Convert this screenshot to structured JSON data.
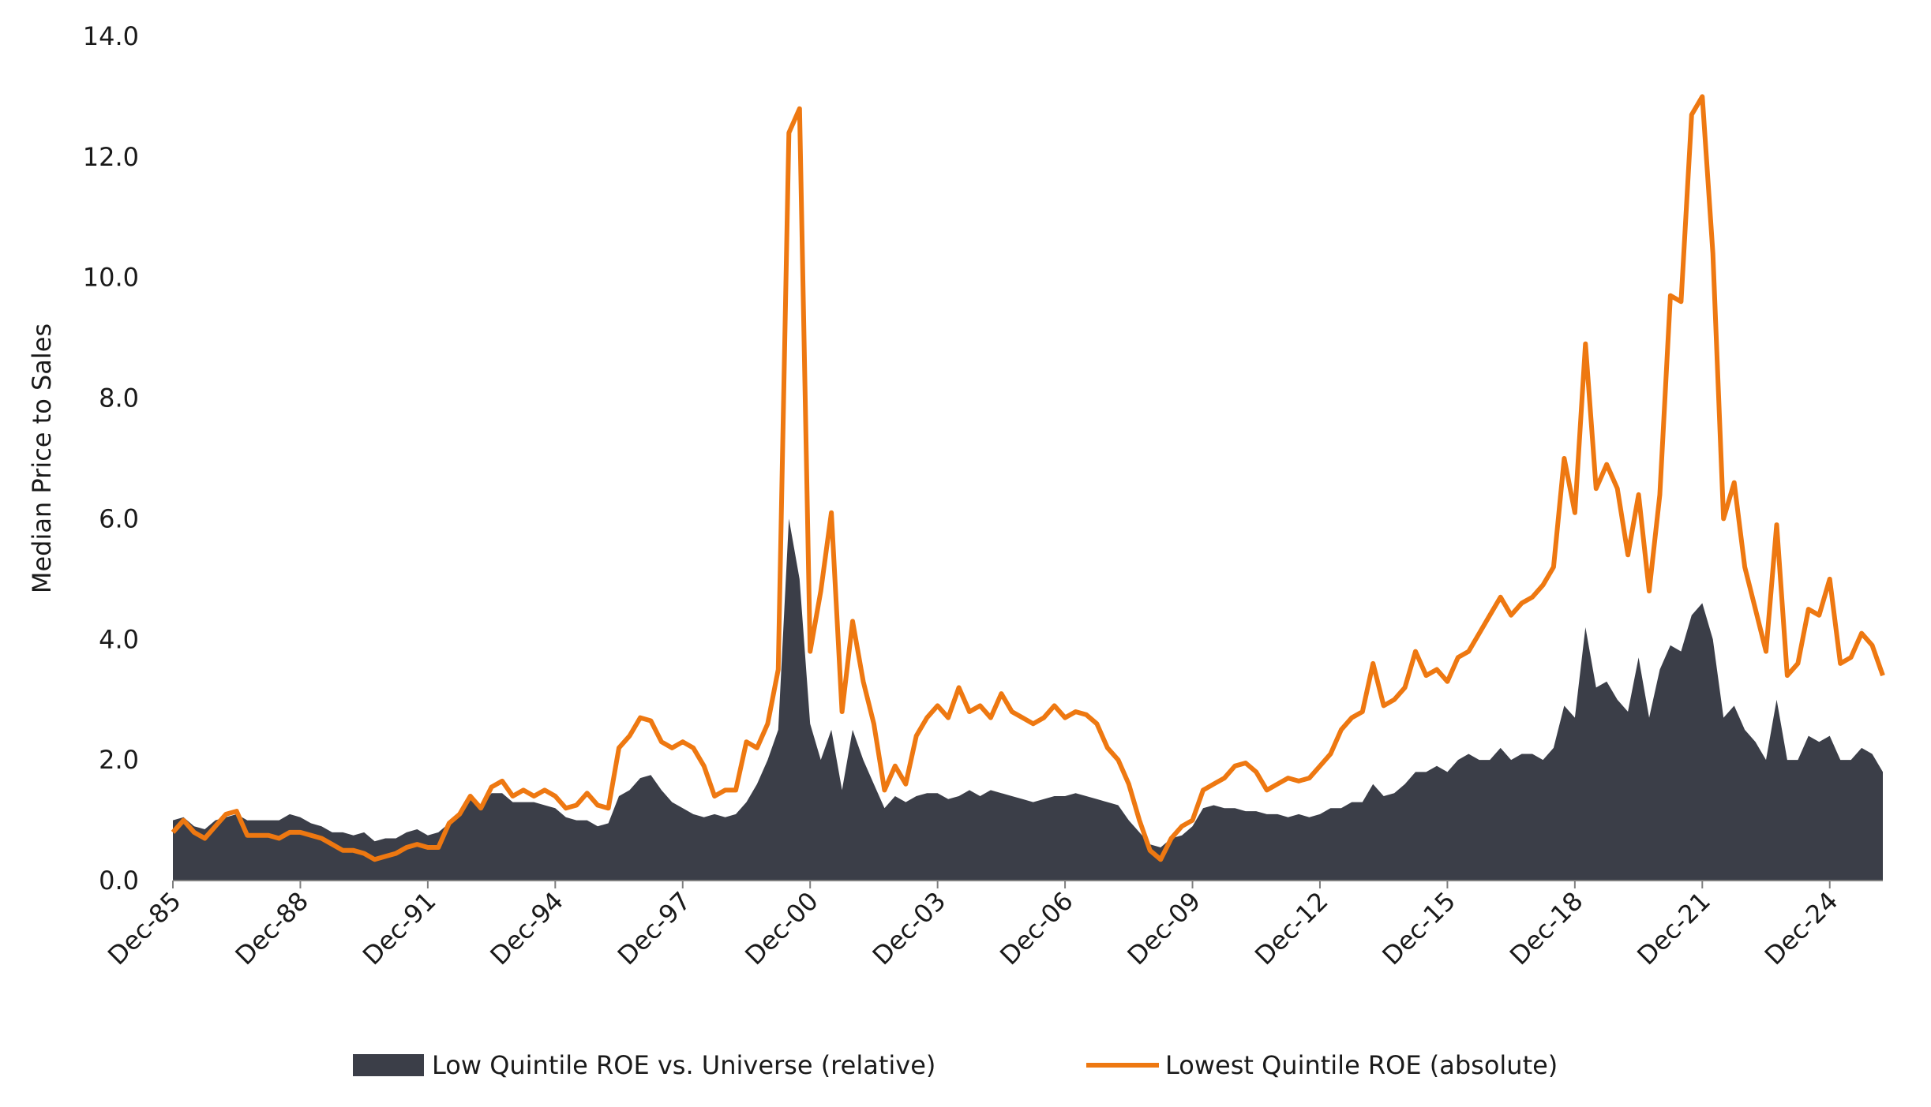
{
  "chart_data": {
    "type": "line",
    "ylabel": "Median Price to Sales",
    "xlim": [
      1985.92,
      2026.17
    ],
    "ylim": [
      0,
      14
    ],
    "yticks": [
      {
        "value": 0,
        "label": "0.0"
      },
      {
        "value": 2,
        "label": "2.0"
      },
      {
        "value": 4,
        "label": "4.0"
      },
      {
        "value": 6,
        "label": "6.0"
      },
      {
        "value": 8,
        "label": "8.0"
      },
      {
        "value": 10,
        "label": "10.0"
      },
      {
        "value": 12,
        "label": "12.0"
      },
      {
        "value": 14,
        "label": "14.0"
      }
    ],
    "xticks": [
      {
        "value": 1985.92,
        "label": "Dec-85"
      },
      {
        "value": 1988.92,
        "label": "Dec-88"
      },
      {
        "value": 1991.92,
        "label": "Dec-91"
      },
      {
        "value": 1994.92,
        "label": "Dec-94"
      },
      {
        "value": 1997.92,
        "label": "Dec-97"
      },
      {
        "value": 2000.92,
        "label": "Dec-00"
      },
      {
        "value": 2003.92,
        "label": "Dec-03"
      },
      {
        "value": 2006.92,
        "label": "Dec-06"
      },
      {
        "value": 2009.92,
        "label": "Dec-09"
      },
      {
        "value": 2012.92,
        "label": "Dec-12"
      },
      {
        "value": 2015.92,
        "label": "Dec-15"
      },
      {
        "value": 2018.92,
        "label": "Dec-18"
      },
      {
        "value": 2021.92,
        "label": "Dec-21"
      },
      {
        "value": 2024.92,
        "label": "Dec-24"
      }
    ],
    "grid": false,
    "legend": "bottom",
    "x": [
      1985.92,
      1986.17,
      1986.42,
      1986.67,
      1986.92,
      1987.17,
      1987.42,
      1987.67,
      1987.92,
      1988.17,
      1988.42,
      1988.67,
      1988.92,
      1989.17,
      1989.42,
      1989.67,
      1989.92,
      1990.17,
      1990.42,
      1990.67,
      1990.92,
      1991.17,
      1991.42,
      1991.67,
      1991.92,
      1992.17,
      1992.42,
      1992.67,
      1992.92,
      1993.17,
      1993.42,
      1993.67,
      1993.92,
      1994.17,
      1994.42,
      1994.67,
      1994.92,
      1995.17,
      1995.42,
      1995.67,
      1995.92,
      1996.17,
      1996.42,
      1996.67,
      1996.92,
      1997.17,
      1997.42,
      1997.67,
      1997.92,
      1998.17,
      1998.42,
      1998.67,
      1998.92,
      1999.17,
      1999.42,
      1999.67,
      1999.92,
      2000.17,
      2000.42,
      2000.67,
      2000.92,
      2001.17,
      2001.42,
      2001.67,
      2001.92,
      2002.17,
      2002.42,
      2002.67,
      2002.92,
      2003.17,
      2003.42,
      2003.67,
      2003.92,
      2004.17,
      2004.42,
      2004.67,
      2004.92,
      2005.17,
      2005.42,
      2005.67,
      2005.92,
      2006.17,
      2006.42,
      2006.67,
      2006.92,
      2007.17,
      2007.42,
      2007.67,
      2007.92,
      2008.17,
      2008.42,
      2008.67,
      2008.92,
      2009.17,
      2009.42,
      2009.67,
      2009.92,
      2010.17,
      2010.42,
      2010.67,
      2010.92,
      2011.17,
      2011.42,
      2011.67,
      2011.92,
      2012.17,
      2012.42,
      2012.67,
      2012.92,
      2013.17,
      2013.42,
      2013.67,
      2013.92,
      2014.17,
      2014.42,
      2014.67,
      2014.92,
      2015.17,
      2015.42,
      2015.67,
      2015.92,
      2016.17,
      2016.42,
      2016.67,
      2016.92,
      2017.17,
      2017.42,
      2017.67,
      2017.92,
      2018.17,
      2018.42,
      2018.67,
      2018.92,
      2019.17,
      2019.42,
      2019.67,
      2019.92,
      2020.17,
      2020.42,
      2020.67,
      2020.92,
      2021.17,
      2021.42,
      2021.67,
      2021.92,
      2022.17,
      2022.42,
      2022.67,
      2022.92,
      2023.17,
      2023.42,
      2023.67,
      2023.92,
      2024.17,
      2024.42,
      2024.67,
      2024.92,
      2025.17,
      2025.42,
      2025.67,
      2025.92,
      2026.17
    ],
    "series": [
      {
        "name": "Low Quintile ROE vs. Universe (relative)",
        "type": "area",
        "color": "#3b3e48",
        "values": [
          1.0,
          1.05,
          0.9,
          0.85,
          1.0,
          1.05,
          1.1,
          1.0,
          1.0,
          1.0,
          1.0,
          1.1,
          1.05,
          0.95,
          0.9,
          0.8,
          0.8,
          0.75,
          0.8,
          0.65,
          0.7,
          0.7,
          0.8,
          0.85,
          0.75,
          0.8,
          0.95,
          1.1,
          1.4,
          1.2,
          1.45,
          1.45,
          1.3,
          1.3,
          1.3,
          1.25,
          1.2,
          1.05,
          1.0,
          1.0,
          0.9,
          0.95,
          1.4,
          1.5,
          1.7,
          1.75,
          1.5,
          1.3,
          1.2,
          1.1,
          1.05,
          1.1,
          1.05,
          1.1,
          1.3,
          1.6,
          2.0,
          2.5,
          6.0,
          5.0,
          2.6,
          2.0,
          2.5,
          1.5,
          2.5,
          2.0,
          1.6,
          1.2,
          1.4,
          1.3,
          1.4,
          1.45,
          1.45,
          1.35,
          1.4,
          1.5,
          1.4,
          1.5,
          1.45,
          1.4,
          1.35,
          1.3,
          1.35,
          1.4,
          1.4,
          1.45,
          1.4,
          1.35,
          1.3,
          1.25,
          1.0,
          0.8,
          0.6,
          0.55,
          0.7,
          0.75,
          0.9,
          1.2,
          1.25,
          1.2,
          1.2,
          1.15,
          1.15,
          1.1,
          1.1,
          1.05,
          1.1,
          1.05,
          1.1,
          1.2,
          1.2,
          1.3,
          1.3,
          1.6,
          1.4,
          1.45,
          1.6,
          1.8,
          1.8,
          1.9,
          1.8,
          2.0,
          2.1,
          2.0,
          2.0,
          2.2,
          2.0,
          2.1,
          2.1,
          2.0,
          2.2,
          2.9,
          2.7,
          4.2,
          3.2,
          3.3,
          3.0,
          2.8,
          3.7,
          2.7,
          3.5,
          3.9,
          3.8,
          4.4,
          4.6,
          4.0,
          2.7,
          2.9,
          2.5,
          2.3,
          2.0,
          3.0,
          2.0,
          2.0,
          2.4,
          2.3,
          2.4,
          2.0,
          2.0,
          2.2,
          2.1,
          1.8
        ]
      },
      {
        "name": "Lowest Quintile ROE (absolute)",
        "type": "line",
        "color": "#ee7811",
        "values": [
          0.8,
          1.0,
          0.8,
          0.7,
          0.9,
          1.1,
          1.15,
          0.75,
          0.75,
          0.75,
          0.7,
          0.8,
          0.8,
          0.75,
          0.7,
          0.6,
          0.5,
          0.5,
          0.45,
          0.35,
          0.4,
          0.45,
          0.55,
          0.6,
          0.55,
          0.55,
          0.95,
          1.1,
          1.4,
          1.2,
          1.55,
          1.65,
          1.4,
          1.5,
          1.4,
          1.5,
          1.4,
          1.2,
          1.25,
          1.45,
          1.25,
          1.2,
          2.2,
          2.4,
          2.7,
          2.65,
          2.3,
          2.2,
          2.3,
          2.2,
          1.9,
          1.4,
          1.5,
          1.5,
          2.3,
          2.2,
          2.6,
          3.5,
          12.4,
          12.8,
          3.8,
          4.8,
          6.1,
          2.8,
          4.3,
          3.3,
          2.6,
          1.5,
          1.9,
          1.6,
          2.4,
          2.7,
          2.9,
          2.7,
          3.2,
          2.8,
          2.9,
          2.7,
          3.1,
          2.8,
          2.7,
          2.6,
          2.7,
          2.9,
          2.7,
          2.8,
          2.75,
          2.6,
          2.2,
          2.0,
          1.6,
          1.0,
          0.5,
          0.35,
          0.7,
          0.9,
          1.0,
          1.5,
          1.6,
          1.7,
          1.9,
          1.95,
          1.8,
          1.5,
          1.6,
          1.7,
          1.65,
          1.7,
          1.9,
          2.1,
          2.5,
          2.7,
          2.8,
          3.6,
          2.9,
          3.0,
          3.2,
          3.8,
          3.4,
          3.5,
          3.3,
          3.7,
          3.8,
          4.1,
          4.4,
          4.7,
          4.4,
          4.6,
          4.7,
          4.9,
          5.2,
          7.0,
          6.1,
          8.9,
          6.5,
          6.9,
          6.5,
          5.4,
          6.4,
          4.8,
          6.4,
          9.7,
          9.6,
          12.7,
          13.0,
          10.4,
          6.0,
          6.6,
          5.2,
          4.5,
          3.8,
          5.9,
          3.4,
          3.6,
          4.5,
          4.4,
          5.0,
          3.6,
          3.7,
          4.1,
          3.9,
          3.4
        ]
      }
    ]
  }
}
